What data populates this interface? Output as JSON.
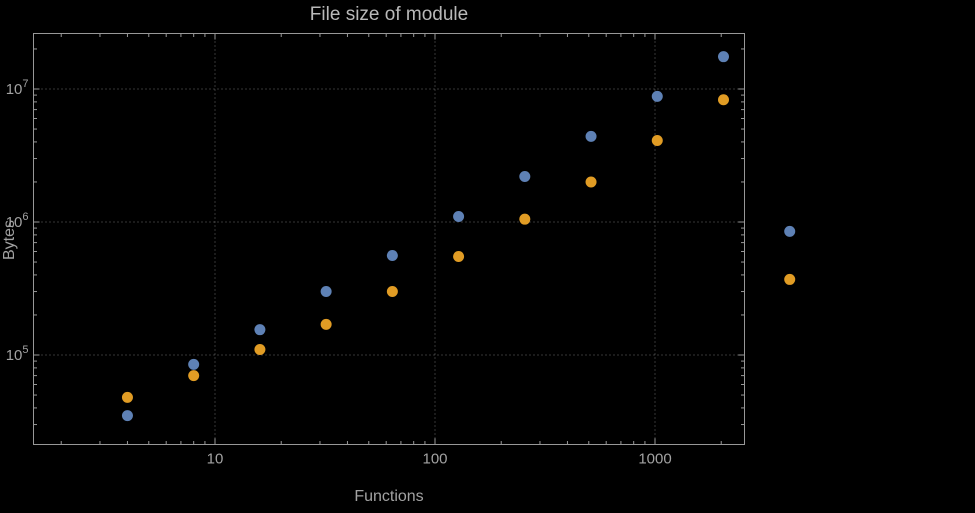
{
  "chart_data": {
    "type": "scatter",
    "title": "File size of module",
    "xlabel": "Functions",
    "ylabel": "Bytes",
    "x_scale": "log",
    "y_scale": "log",
    "grid": "dotted",
    "legend": "none",
    "background": "#000000",
    "frame_color": "#989898",
    "label_color": "#a2a2a2",
    "grid_color": "#6b6b6b",
    "xlim": [
      1.5,
      2560
    ],
    "ylim": [
      21000,
      26000000
    ],
    "x_ticks": [
      {
        "value": 10,
        "label": "10"
      },
      {
        "value": 100,
        "label": "100"
      },
      {
        "value": 1000,
        "label": "1000"
      }
    ],
    "y_ticks": [
      {
        "value": 100000,
        "base": "10",
        "exp": "5"
      },
      {
        "value": 1000000,
        "base": "10",
        "exp": "6"
      },
      {
        "value": 10000000,
        "base": "10",
        "exp": "7"
      }
    ],
    "x": [
      4,
      8,
      16,
      32,
      64,
      128,
      256,
      512,
      1024,
      2048,
      4096
    ],
    "series": [
      {
        "name": "series-blue",
        "color": "#5e81b5",
        "values": [
          35000,
          85000,
          155000,
          300000,
          560000,
          1100000,
          2200000,
          4400000,
          8800000,
          17500000,
          850000
        ]
      },
      {
        "name": "series-orange",
        "color": "#e19c24",
        "values": [
          48000,
          70000,
          110000,
          170000,
          300000,
          550000,
          1050000,
          2000000,
          4100000,
          8300000,
          370000
        ]
      }
    ]
  }
}
